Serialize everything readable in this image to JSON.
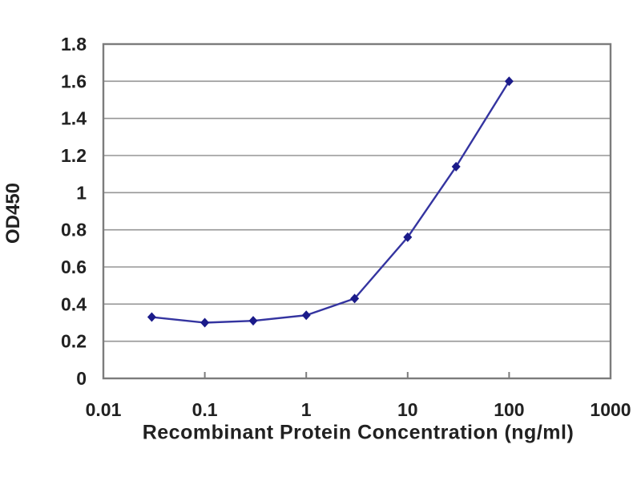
{
  "chart_data": {
    "type": "line",
    "title": "",
    "xlabel": "Recombinant Protein Concentration (ng/ml)",
    "ylabel": "OD450",
    "xscale": "log",
    "xlim": [
      0.01,
      1000
    ],
    "ylim": [
      0,
      1.8
    ],
    "xticks": [
      0.01,
      0.1,
      1,
      10,
      100,
      1000
    ],
    "xtick_labels": [
      "0.01",
      "0.1",
      "1",
      "10",
      "100",
      "1000"
    ],
    "ytick_labels": [
      "0",
      "0.2",
      "0.4",
      "0.6",
      "0.8",
      "1",
      "1.2",
      "1.4",
      "1.6",
      "1.8"
    ],
    "grid": "horizontal",
    "legend": "none",
    "series": [
      {
        "x": [
          0.03,
          0.1,
          0.3,
          1,
          3,
          10,
          30,
          100
        ],
        "y": [
          0.33,
          0.3,
          0.31,
          0.34,
          0.43,
          0.76,
          1.14,
          1.6
        ],
        "marker": "diamond",
        "line_color": "#3434a0",
        "marker_color": "#1b1b8a"
      }
    ],
    "colors": {
      "grid": "#969696",
      "frame": "#7c7c7c",
      "text": "#212121",
      "background": "#ffffff"
    }
  }
}
